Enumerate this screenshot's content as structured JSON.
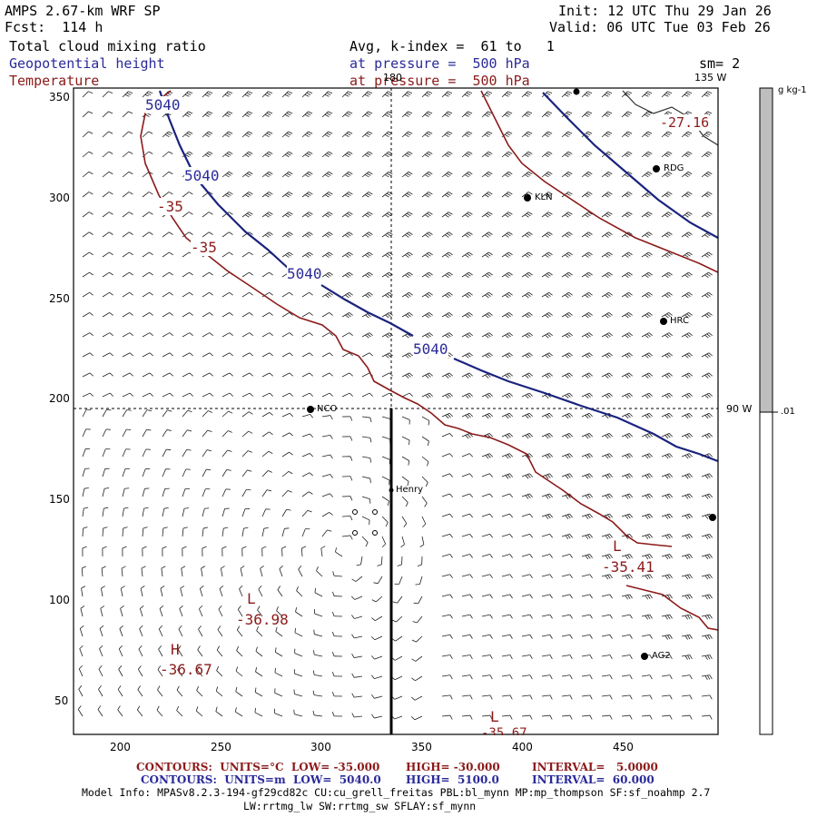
{
  "header": {
    "title": "AMPS 2.67-km WRF SP",
    "forecast": "Fcst:  114 h",
    "init": "Init: 12 UTC Thu 29 Jan 26",
    "valid": "Valid: 06 UTC Tue 03 Feb 26",
    "field1": "Total cloud mixing ratio",
    "field2": "Geopotential height",
    "field3": "Temperature",
    "avg": "Avg, k-index =  61 to   1",
    "pressure1": "at pressure =  500 hPa",
    "pressure2": "at pressure =  500 hPa",
    "sm": "sm= 2"
  },
  "map": {
    "x_ticks": [
      "200",
      "250",
      "300",
      "350",
      "400",
      "450"
    ],
    "y_ticks": [
      "350",
      "300",
      "250",
      "200",
      "150",
      "100",
      "50"
    ],
    "meridian_labels": {
      "top": "180",
      "right_top": "135 W",
      "right_mid": "90 W"
    },
    "stations": [
      "KLN",
      "RDG",
      "HRC",
      "NCO",
      "Henry",
      "AG2"
    ],
    "height_contour_labels": [
      "5040",
      "5040",
      "5040",
      "5040"
    ],
    "temp_contour_labels": [
      "-35",
      "-35",
      "-27.16"
    ],
    "extrema": [
      {
        "type": "L",
        "value": "-35.41"
      },
      {
        "type": "L",
        "value": "-36.98"
      },
      {
        "type": "H",
        "value": "-36.67"
      },
      {
        "type": "L",
        "value": "-35.67"
      }
    ]
  },
  "colorbar": {
    "units": "g kg-1",
    "level": ".01",
    "fill_color": "#bebebe"
  },
  "footer": {
    "line1_a": "CONTOURS:  UNITS=°C  LOW= -35.000",
    "line1_b": "HIGH= -30.000",
    "line1_c": "INTERVAL=   5.0000",
    "line2_a": "CONTOURS:  UNITS=m  LOW=  5040.0",
    "line2_b": "HIGH=  5100.0",
    "line2_c": "INTERVAL=  60.000",
    "model1": "Model Info: MPASv8.2.3-194-gf29cd82c CU:cu_grell_freitas PBL:bl_mynn MP:mp_thompson SF:sf_noahmp 2.7",
    "model2": "LW:rrtmg_lw SW:rrtmg_sw SFLAY:sf_mynn"
  },
  "colors": {
    "height": "#1a237e",
    "temperature": "#8b1a1a",
    "footer_temp": "#8b1a1a",
    "footer_height": "#1a237e"
  }
}
